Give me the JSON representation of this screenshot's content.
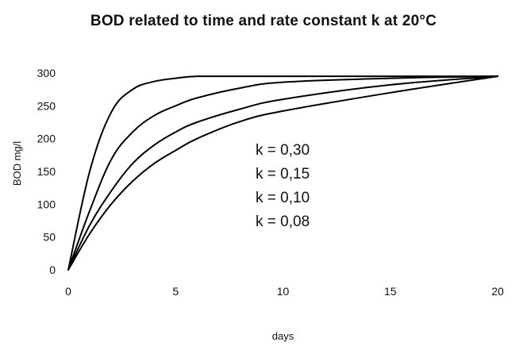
{
  "chart_data": {
    "type": "line",
    "title": "BOD related to time and rate constant k at 20°C",
    "xlabel": "days",
    "ylabel": "BOD mg/l",
    "xlim": [
      0,
      20
    ],
    "ylim": [
      0,
      300
    ],
    "xticks": [
      0,
      5,
      10,
      15,
      20
    ],
    "yticks": [
      0,
      50,
      100,
      150,
      200,
      250,
      300
    ],
    "grid": false,
    "series": [
      {
        "name": "k = 0,30",
        "x": [
          0,
          1,
          2,
          3,
          4,
          5,
          6,
          8,
          10,
          15,
          20
        ],
        "y": [
          0,
          150,
          240,
          275,
          287,
          292,
          295,
          295,
          295,
          295,
          295
        ]
      },
      {
        "name": "k = 0,15",
        "x": [
          0,
          1,
          2,
          3,
          4,
          5,
          6,
          8,
          10,
          15,
          20
        ],
        "y": [
          0,
          90,
          168,
          210,
          235,
          250,
          262,
          277,
          286,
          292,
          295
        ]
      },
      {
        "name": "k = 0,10",
        "x": [
          0,
          1,
          2,
          3,
          4,
          5,
          6,
          8,
          10,
          15,
          20
        ],
        "y": [
          0,
          68,
          120,
          162,
          190,
          210,
          225,
          245,
          260,
          282,
          295
        ]
      },
      {
        "name": "k = 0,08",
        "x": [
          0,
          1,
          2,
          3,
          4,
          5,
          6,
          8,
          10,
          15,
          20
        ],
        "y": [
          0,
          55,
          100,
          135,
          162,
          182,
          200,
          226,
          242,
          270,
          295
        ]
      }
    ],
    "legend": [
      "k = 0,30",
      "k = 0,15",
      "k = 0,10",
      "k = 0,08"
    ]
  }
}
